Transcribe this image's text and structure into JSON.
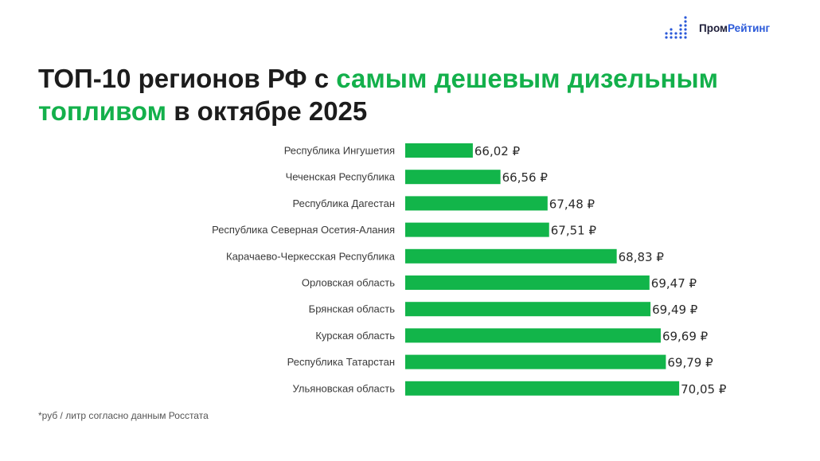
{
  "brand": {
    "name_part1": "Пром",
    "name_part2": "Рейтинг",
    "icon": "bar-dots-logo-icon",
    "accent_color": "#2a59d9"
  },
  "title": {
    "part1": "ТОП-10 регионов РФ с ",
    "highlight": "самым дешевым дизельным топливом",
    "part2": " в октябре 2025",
    "highlight_color": "#13b04b"
  },
  "footnote": "*руб / литр согласно данным Росстата",
  "chart_data": {
    "type": "bar",
    "orientation": "horizontal",
    "categories": [
      "Республика Ингушетия",
      "Чеченская Республика",
      "Республика Дагестан",
      "Республика Северная Осетия-Алания",
      "Карачаево-Черкесская Республика",
      "Орловская область",
      "Брянская область",
      "Курская область",
      "Республика Татарстан",
      "Ульяновская область"
    ],
    "values": [
      66.02,
      66.56,
      67.48,
      67.51,
      68.83,
      69.47,
      69.49,
      69.69,
      69.79,
      70.05
    ],
    "value_labels": [
      "66,02 ₽",
      "66,56 ₽",
      "67,48 ₽",
      "67,51 ₽",
      "68,83 ₽",
      "69,47 ₽",
      "69,49 ₽",
      "69,69 ₽",
      "69,79 ₽",
      "70,05 ₽"
    ],
    "xlim": [
      64.7,
      72.8
    ],
    "bar_color": "#12b54a",
    "grid": false,
    "legend": "none"
  }
}
